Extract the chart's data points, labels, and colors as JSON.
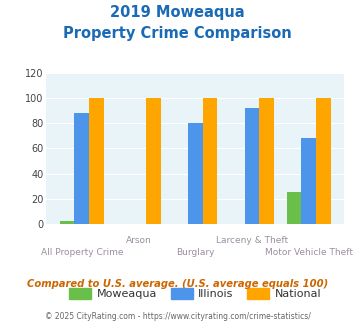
{
  "title_line1": "2019 Moweaqua",
  "title_line2": "Property Crime Comparison",
  "categories": [
    "All Property Crime",
    "Arson",
    "Burglary",
    "Larceny & Theft",
    "Motor Vehicle Theft"
  ],
  "moweaqua": [
    3,
    0,
    0,
    0,
    26
  ],
  "illinois": [
    88,
    0,
    80,
    92,
    68
  ],
  "national": [
    100,
    100,
    100,
    100,
    100
  ],
  "bar_color_moweaqua": "#6abf4b",
  "bar_color_illinois": "#4d94eb",
  "bar_color_national": "#ffa500",
  "ylim": [
    0,
    120
  ],
  "yticks": [
    0,
    20,
    40,
    60,
    80,
    100,
    120
  ],
  "bg_color": "#e8f4f8",
  "title_color": "#1a6ab5",
  "label_color": "#9b8ea0",
  "footer_text": "Compared to U.S. average. (U.S. average equals 100)",
  "footer_color": "#cc6600",
  "copyright_text": "© 2025 CityRating.com - https://www.cityrating.com/crime-statistics/",
  "copyright_color": "#666666",
  "legend_labels": [
    "Moweaqua",
    "Illinois",
    "National"
  ],
  "group_labels_top": [
    "",
    "Arson",
    "",
    "Larceny & Theft",
    ""
  ],
  "group_labels_bottom": [
    "All Property Crime",
    "",
    "Burglary",
    "",
    "Motor Vehicle Theft"
  ]
}
